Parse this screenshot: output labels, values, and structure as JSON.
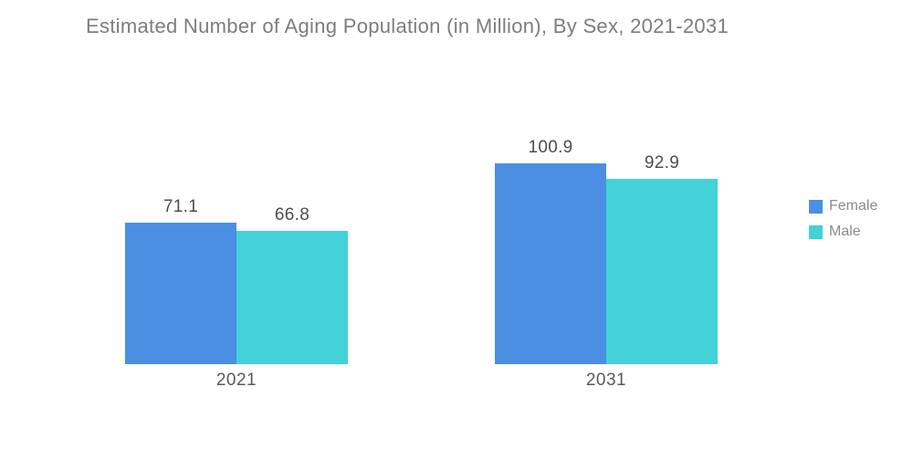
{
  "title": "Estimated Number of Aging Population (in Million), By Sex, 2021-2031",
  "colors": {
    "female": "#4A8FE2",
    "male": "#42D2D8",
    "title_text": "#7d7d7d",
    "value_text": "#4d4d4d",
    "category_text": "#595959",
    "legend_text": "#8c8c8c",
    "background": "#FFFFFF"
  },
  "chart_data": {
    "type": "bar",
    "title": "Estimated Number of Aging Population (in Million), By Sex, 2021-2031",
    "categories": [
      "2021",
      "2031"
    ],
    "series": [
      {
        "name": "Female",
        "color": "#4A8FE2",
        "values": [
          71.1,
          100.9
        ]
      },
      {
        "name": "Male",
        "color": "#42D2D8",
        "values": [
          66.8,
          92.9
        ]
      }
    ],
    "value_labels": [
      [
        "71.1",
        "100.9"
      ],
      [
        "66.8",
        "92.9"
      ]
    ],
    "xlabel": "",
    "ylabel": "",
    "ylim": [
      0,
      110
    ],
    "grid": false,
    "axes_visible": false,
    "legend_position": "right",
    "legend": [
      "Female",
      "Male"
    ]
  }
}
